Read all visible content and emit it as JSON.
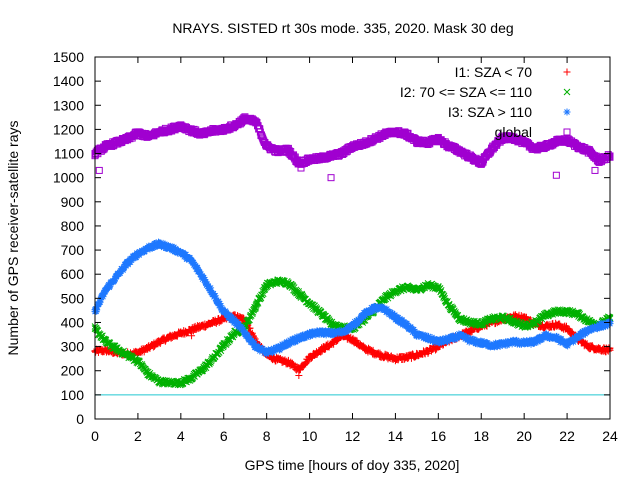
{
  "chart_data": {
    "type": "scatter",
    "title": "NRAYS. SISTED rt 30s mode. 335, 2020. Mask 30 deg",
    "xlabel": "GPS time [hours of doy 335, 2020]",
    "ylabel": "Number of GPS receiver-satellite rays",
    "xlim": [
      0,
      24
    ],
    "ylim": [
      0,
      1500
    ],
    "x_ticks": [
      0,
      2,
      4,
      6,
      8,
      10,
      12,
      14,
      16,
      18,
      20,
      22,
      24
    ],
    "y_ticks": [
      0,
      100,
      200,
      300,
      400,
      500,
      600,
      700,
      800,
      900,
      1000,
      1100,
      1200,
      1300,
      1400,
      1500
    ],
    "grid": false,
    "legend_position": "top-right",
    "reference_line": {
      "y": 100,
      "color": "#22c8d0"
    },
    "series": [
      {
        "name": "I1: SZA < 70",
        "marker": "+",
        "color": "#ff0000",
        "x": [
          0,
          0.5,
          1,
          1.5,
          2,
          2.5,
          3,
          3.5,
          4,
          4.5,
          5,
          5.5,
          6,
          6.5,
          7,
          7.5,
          8,
          8.5,
          9,
          9.5,
          10,
          10.5,
          11,
          11.5,
          12,
          12.5,
          13,
          13.5,
          14,
          14.5,
          15,
          15.5,
          16,
          16.5,
          17,
          17.5,
          18,
          18.5,
          19,
          19.5,
          20,
          20.5,
          21,
          21.5,
          22,
          22.5,
          23,
          23.5,
          24
        ],
        "values": [
          280,
          285,
          275,
          270,
          275,
          295,
          320,
          340,
          355,
          370,
          385,
          400,
          415,
          425,
          410,
          320,
          265,
          245,
          235,
          205,
          255,
          285,
          310,
          345,
          330,
          295,
          275,
          260,
          250,
          255,
          265,
          280,
          300,
          325,
          345,
          365,
          385,
          400,
          415,
          425,
          420,
          395,
          385,
          390,
          375,
          330,
          300,
          290,
          285
        ]
      },
      {
        "name": "I2: 70 <= SZA <= 110",
        "marker": "x",
        "color": "#00b000",
        "x": [
          0,
          0.5,
          1,
          1.5,
          2,
          2.5,
          3,
          3.5,
          4,
          4.5,
          5,
          5.5,
          6,
          6.5,
          7,
          7.5,
          8,
          8.5,
          9,
          9.5,
          10,
          10.5,
          11,
          11.5,
          12,
          12.5,
          13,
          13.5,
          14,
          14.5,
          15,
          15.5,
          16,
          16.5,
          17,
          17.5,
          18,
          18.5,
          19,
          19.5,
          20,
          20.5,
          21,
          21.5,
          22,
          22.5,
          23,
          23.5,
          24
        ],
        "values": [
          375,
          320,
          290,
          265,
          240,
          185,
          155,
          150,
          150,
          170,
          205,
          250,
          305,
          355,
          385,
          470,
          555,
          570,
          565,
          520,
          480,
          440,
          395,
          380,
          375,
          410,
          450,
          500,
          530,
          545,
          535,
          555,
          545,
          470,
          415,
          400,
          395,
          415,
          420,
          405,
          385,
          400,
          430,
          445,
          445,
          435,
          405,
          390,
          420
        ]
      },
      {
        "name": "I3: SZA > 110",
        "marker": "*",
        "color": "#1e78ff",
        "x": [
          0,
          0.5,
          1,
          1.5,
          2,
          2.5,
          3,
          3.5,
          4,
          4.5,
          5,
          5.5,
          6,
          6.5,
          7,
          7.5,
          8,
          8.5,
          9,
          9.5,
          10,
          10.5,
          11,
          11.5,
          12,
          12.5,
          13,
          13.5,
          14,
          14.5,
          15,
          15.5,
          16,
          16.5,
          17,
          17.5,
          18,
          18.5,
          19,
          19.5,
          20,
          20.5,
          21,
          21.5,
          22,
          22.5,
          23,
          23.5,
          24
        ],
        "values": [
          445,
          535,
          590,
          645,
          685,
          710,
          725,
          710,
          690,
          655,
          590,
          520,
          445,
          405,
          355,
          300,
          275,
          290,
          315,
          335,
          350,
          360,
          355,
          360,
          385,
          430,
          460,
          455,
          420,
          390,
          350,
          335,
          320,
          330,
          345,
          325,
          315,
          305,
          310,
          320,
          315,
          320,
          345,
          335,
          310,
          340,
          370,
          385,
          395
        ]
      },
      {
        "name": "global",
        "marker": "square",
        "color": "#a000d0",
        "x": [
          0,
          0.5,
          1,
          1.5,
          2,
          2.5,
          3,
          3.5,
          4,
          4.5,
          5,
          5.5,
          6,
          6.5,
          7,
          7.5,
          8,
          8.5,
          9,
          9.5,
          10,
          10.5,
          11,
          11.5,
          12,
          12.5,
          13,
          13.5,
          14,
          14.5,
          15,
          15.5,
          16,
          16.5,
          17,
          17.5,
          18,
          18.5,
          19,
          19.5,
          20,
          20.5,
          21,
          21.5,
          22,
          22.5,
          23,
          23.5,
          24
        ],
        "values": [
          1100,
          1130,
          1145,
          1160,
          1185,
          1170,
          1190,
          1200,
          1215,
          1195,
          1180,
          1195,
          1200,
          1215,
          1245,
          1230,
          1130,
          1110,
          1115,
          1060,
          1075,
          1080,
          1090,
          1100,
          1130,
          1140,
          1160,
          1180,
          1190,
          1180,
          1150,
          1145,
          1160,
          1130,
          1110,
          1085,
          1060,
          1120,
          1165,
          1165,
          1145,
          1120,
          1130,
          1150,
          1155,
          1130,
          1110,
          1070,
          1090
        ]
      }
    ],
    "outliers": [
      {
        "series": "global",
        "x": 0.2,
        "y": 1030
      },
      {
        "series": "global",
        "x": 11,
        "y": 1000
      },
      {
        "series": "global",
        "x": 21.5,
        "y": 1010
      },
      {
        "series": "global",
        "x": 23.3,
        "y": 1030
      },
      {
        "series": "global",
        "x": 9.6,
        "y": 1040
      },
      {
        "series": "I1: SZA < 70",
        "x": 9.5,
        "y": 180
      },
      {
        "series": "I1: SZA < 70",
        "x": 4.5,
        "y": 345
      }
    ]
  }
}
